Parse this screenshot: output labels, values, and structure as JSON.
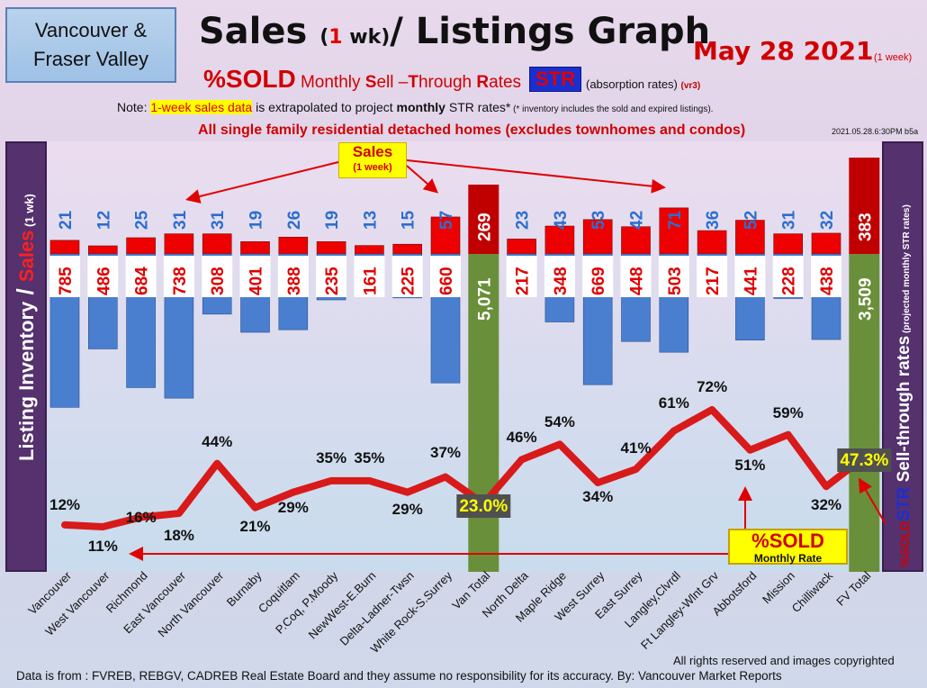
{
  "header": {
    "region_line1": "Vancouver &",
    "region_line2": "Fraser Valley",
    "title_a": "Sales ",
    "title_b": "(",
    "title_one": "1",
    "title_c": " wk)",
    "title_d": "/ Listings Graph",
    "date": "May 28  2021",
    "date_sub": "(1 week)",
    "subtitle_pct": "%SOLD",
    "subtitle_m": " Monthly ",
    "subtitle_s": "S",
    "subtitle_ell": "ell ",
    "subtitle_dash": "–",
    "subtitle_t": "T",
    "subtitle_hrough": "hrough ",
    "subtitle_r": "R",
    "subtitle_ates": "ates",
    "str_badge": "STR",
    "absorb": "(absorption rates)",
    "absorb_vr": "(vr3)",
    "note_a": "Note: ",
    "note_hl": "1-week sales data",
    "note_b": " is extrapolated to project ",
    "note_monthly": "monthly",
    "note_c": " STR rates*",
    "note_small": " (* inventory includes the sold and expired listings).",
    "scope": "All single family residential detached homes (excludes townhomes and condos)",
    "timestamp": "2021.05.28.6:30PM b5a"
  },
  "callouts": {
    "sales_l1": "Sales",
    "sales_l2": "(1 week)",
    "sold_l1": "%SOLD",
    "sold_l2": "Monthly Rate"
  },
  "side_labels": {
    "left_a": "Listing Inventory",
    "left_slash": " / ",
    "left_b": "Sales",
    "left_c": " (1 wk)",
    "right_a": "%SOLD",
    "right_b": "STR",
    "right_c": " Sell-through rates",
    "right_d": " (projected monthly STR rates)"
  },
  "footer": {
    "rights": "All rights reserved and  images copyrighted",
    "source": "Data is from : FVREB, REBGV, CADREB Real Estate Board and they assume no responsibility for its accuracy. By: Vancouver Market Reports"
  },
  "colors": {
    "sales_bar": "#ee0000",
    "total_sales_bar": "#c00000",
    "listings_bar": "#4a7fd0",
    "total_bar": "#6a8f3a",
    "line": "#d81a1a",
    "total_label_bg": "#505050",
    "total_label_fg": "#ffff00"
  },
  "chart_data": {
    "type": "bar",
    "categories": [
      "Vancouver",
      "West Vancouver",
      "Richmond",
      "East Vancouver",
      "North Vancouver",
      "Burnaby",
      "Coquitlam",
      "P.Coq, P.Moody",
      "NewWest-E.Burn",
      "Delta-Ladner-Twsn",
      "White Rock-S.Surrey",
      "Van Total",
      "North Delta",
      "Maple Ridge",
      "West Surrey",
      "East Surrey",
      "Langley,Clvrdl",
      "Ft Langley-Wlnt Grv",
      "Abbotsford",
      "Mission",
      "Chilliwack",
      "FV Total"
    ],
    "total_indices": [
      11,
      21
    ],
    "series": [
      {
        "name": "Sales",
        "type": "bar",
        "values": [
          21,
          12,
          25,
          31,
          31,
          19,
          26,
          19,
          13,
          15,
          57,
          269,
          23,
          43,
          53,
          42,
          71,
          36,
          52,
          31,
          32,
          383
        ]
      },
      {
        "name": "Listing Inventory",
        "type": "bar",
        "values": [
          785,
          486,
          684,
          738,
          308,
          401,
          388,
          235,
          161,
          225,
          660,
          5071,
          217,
          348,
          669,
          448,
          503,
          217,
          441,
          228,
          438,
          3509
        ]
      },
      {
        "name": "%SOLD",
        "type": "line",
        "values": [
          12,
          11,
          16,
          18,
          44,
          21,
          29,
          35,
          35,
          29,
          37,
          23.0,
          46,
          54,
          34,
          41,
          61,
          72,
          51,
          59,
          32,
          47.3
        ]
      }
    ],
    "value_label_formats": {
      "%SOLD_totals": [
        "23.0%",
        "47.3%"
      ]
    },
    "ylabel_left": "Listing Inventory / Sales (1 wk)",
    "ylabel_right": "%SOLD STR Sell-through rates (projected monthly STR rates)"
  }
}
